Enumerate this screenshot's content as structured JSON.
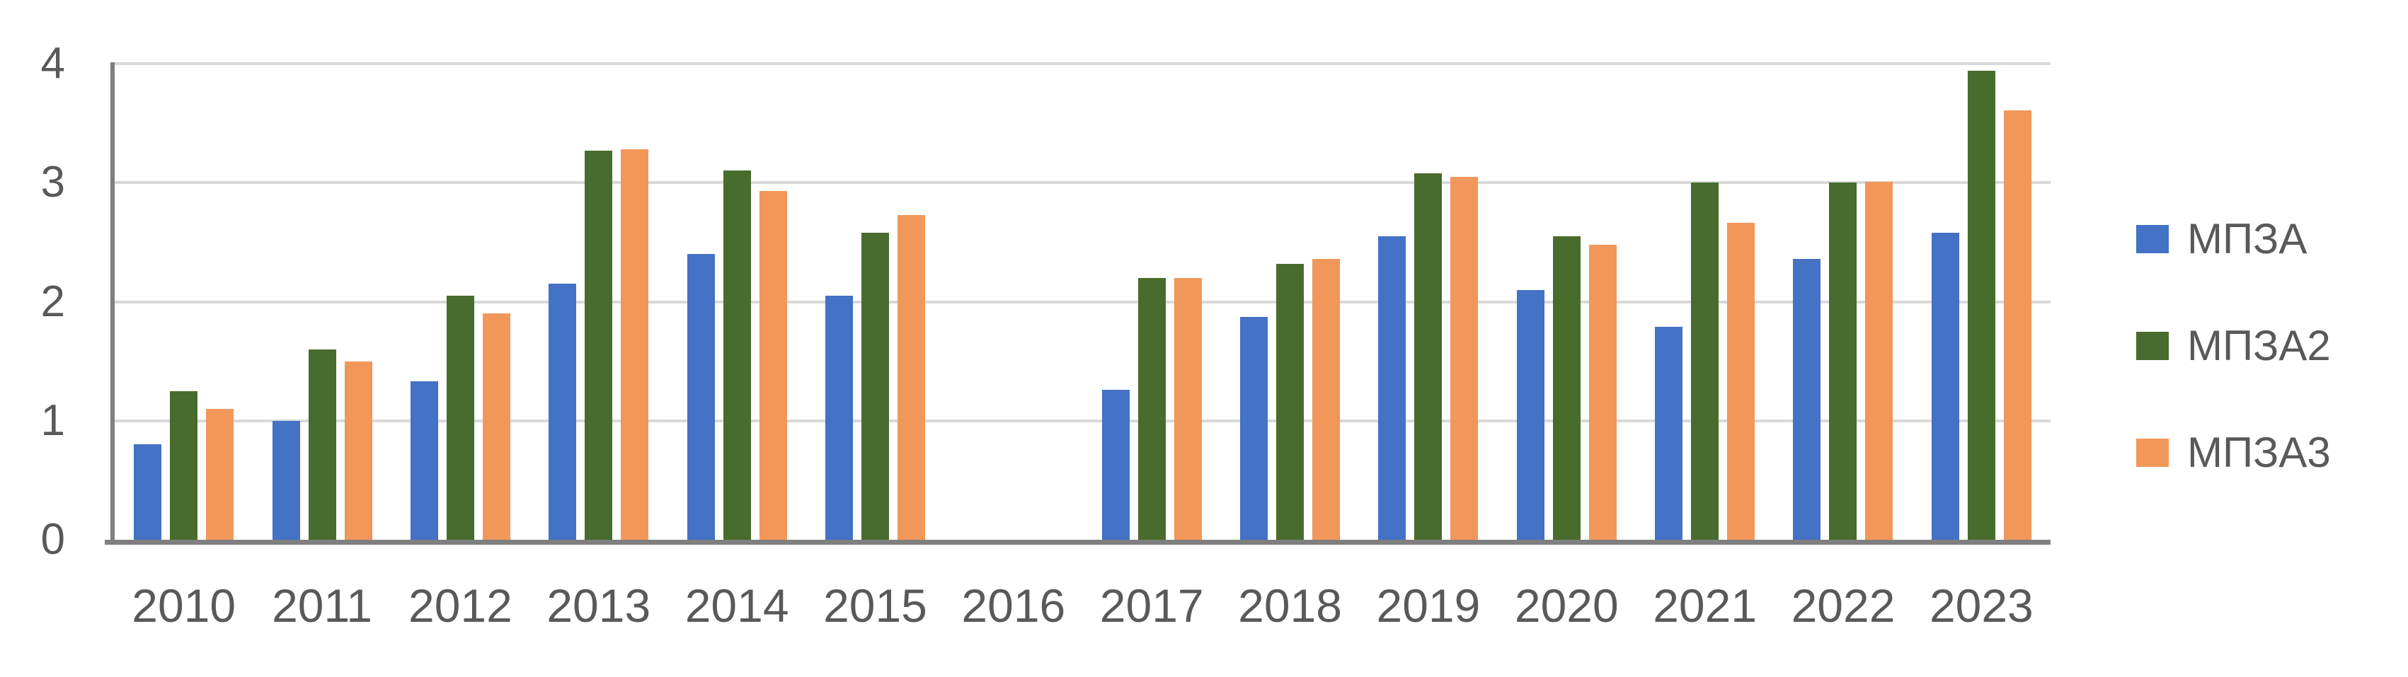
{
  "chart_data": {
    "type": "bar",
    "title": "",
    "xlabel": "",
    "ylabel": "",
    "categories": [
      "2010",
      "2011",
      "2012",
      "2013",
      "2014",
      "2015",
      "2016",
      "2017",
      "2018",
      "2019",
      "2020",
      "2021",
      "2022",
      "2023"
    ],
    "series": [
      {
        "name": "МПЗА",
        "color": "#4472C4",
        "values": [
          0.8,
          1.0,
          1.33,
          2.15,
          2.4,
          2.05,
          0,
          1.26,
          1.87,
          2.55,
          2.1,
          1.79,
          2.36,
          2.58
        ]
      },
      {
        "name": "МПЗА2",
        "color": "#486C2D",
        "values": [
          1.25,
          1.6,
          2.05,
          3.27,
          3.1,
          2.58,
          0,
          2.2,
          2.32,
          3.08,
          2.55,
          3.0,
          3.0,
          3.94
        ]
      },
      {
        "name": "МПЗА3",
        "color": "#F1975A",
        "values": [
          1.1,
          1.5,
          1.9,
          3.28,
          2.93,
          2.73,
          0,
          2.2,
          2.36,
          3.05,
          2.48,
          2.66,
          3.01,
          3.61
        ]
      }
    ],
    "ylim": [
      0,
      4
    ],
    "yticks": [
      0,
      1,
      2,
      3,
      4
    ],
    "grid": true,
    "legend_position": "right",
    "note_empty_category": "2016",
    "colors": {
      "gridline": "#D9D9D9",
      "axis_line": "#7F7F7F",
      "tick_label": "#595959",
      "background": "#FFFFFF"
    }
  }
}
